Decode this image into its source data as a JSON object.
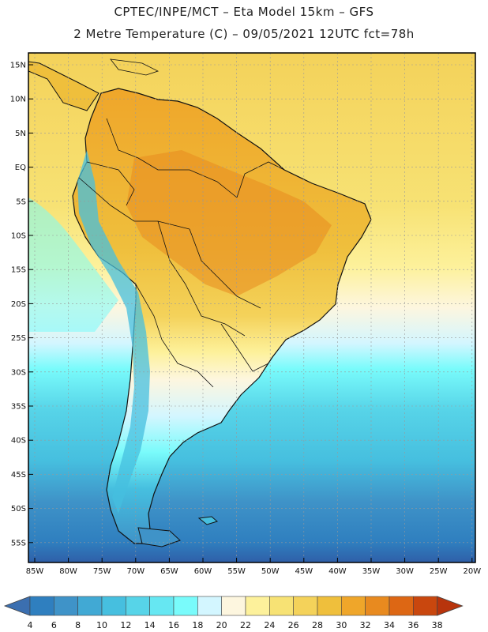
{
  "title": {
    "line1": "CPTEC/INPE/MCT –  Eta Model 15km – GFS",
    "line2": "2 Metre Temperature (C) – 09/05/2021 12UTC fct=78h"
  },
  "axes": {
    "lat_labels": [
      "15N",
      "10N",
      "5N",
      "EQ",
      "5S",
      "10S",
      "15S",
      "20S",
      "25S",
      "30S",
      "35S",
      "40S",
      "45S",
      "50S",
      "55S"
    ],
    "lon_labels": [
      "85W",
      "80W",
      "75W",
      "70W",
      "65W",
      "60W",
      "55W",
      "50W",
      "45W",
      "40W",
      "35W",
      "30W",
      "25W",
      "20W"
    ]
  },
  "colorbar": {
    "labels": [
      "4",
      "6",
      "8",
      "10",
      "12",
      "14",
      "16",
      "18",
      "20",
      "22",
      "24",
      "26",
      "28",
      "30",
      "32",
      "34",
      "36",
      "38"
    ],
    "colors": [
      "#3b6fb0",
      "#2f7fbf",
      "#3f93c8",
      "#41a9d4",
      "#46bfdf",
      "#57d4e8",
      "#66e7f2",
      "#79fbfb",
      "#d3f6ff",
      "#fdf6df",
      "#fdf19b",
      "#f7e274",
      "#f4d25a",
      "#efbf3c",
      "#efa62a",
      "#e88a1f",
      "#dd6714",
      "#c9470e",
      "#b8340c"
    ]
  }
}
